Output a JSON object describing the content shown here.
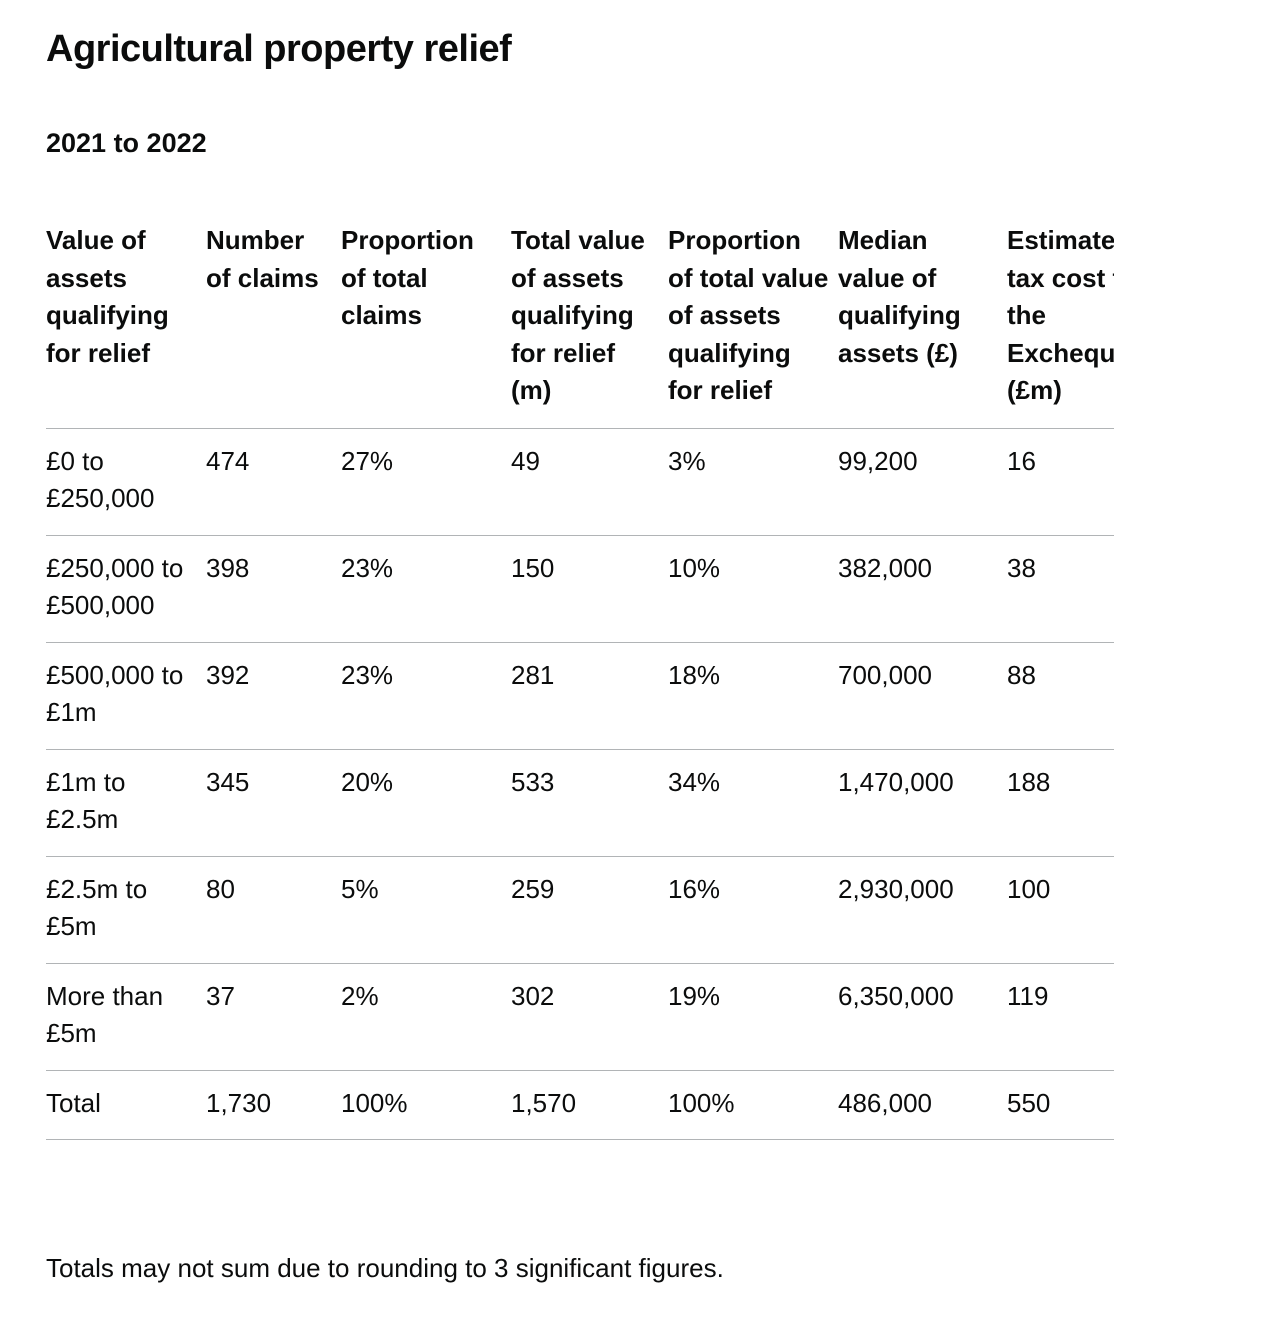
{
  "page": {
    "title": "Agricultural property relief",
    "subtitle": "2021 to 2022",
    "note": "Totals may not sum due to rounding to 3 significant figures."
  },
  "table": {
    "headers": [
      "Value of assets qualifying for relief",
      "Number of claims",
      "Proportion of total claims",
      "Total value of assets qualifying for relief (m)",
      "Proportion of total value of assets qualifying for relief",
      "Median value of qualifying assets (£)",
      "Estimated tax cost to the Exchequer (£m)"
    ],
    "rows": [
      [
        "£0 to £250,000",
        "474",
        "27%",
        "49",
        "3%",
        "99,200",
        "16"
      ],
      [
        "£250,000 to £500,000",
        "398",
        "23%",
        "150",
        "10%",
        "382,000",
        "38"
      ],
      [
        "£500,000 to £1m",
        "392",
        "23%",
        "281",
        "18%",
        "700,000",
        "88"
      ],
      [
        "£1m to £2.5m",
        "345",
        "20%",
        "533",
        "34%",
        "1,470,000",
        "188"
      ],
      [
        "£2.5m to £5m",
        "80",
        "5%",
        "259",
        "16%",
        "2,930,000",
        "100"
      ],
      [
        "More than £5m",
        "37",
        "2%",
        "302",
        "19%",
        "6,350,000",
        "119"
      ],
      [
        "Total",
        "1,730",
        "100%",
        "1,570",
        "100%",
        "486,000",
        "550"
      ]
    ]
  }
}
